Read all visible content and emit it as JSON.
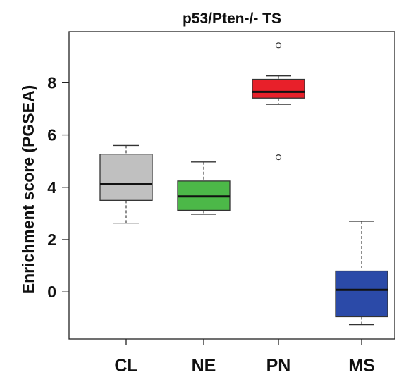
{
  "chart_data": {
    "type": "boxplot",
    "title": "p53/Pten-/- TS",
    "xlabel": "",
    "ylabel": "Enrichment score (PGSEA)",
    "ylim": [
      -1.8,
      9.95
    ],
    "yticks": [
      0,
      2,
      4,
      6,
      8
    ],
    "grid": false,
    "legend": "none",
    "categories": [
      "CL",
      "NE",
      "PN",
      "MS"
    ],
    "boxes": [
      {
        "category": "CL",
        "whisker_low": 2.63,
        "q1": 3.5,
        "median": 4.13,
        "q3": 5.27,
        "whisker_high": 5.6,
        "outliers": [],
        "color": "#c0c0c0"
      },
      {
        "category": "NE",
        "whisker_low": 2.97,
        "q1": 3.12,
        "median": 3.65,
        "q3": 4.24,
        "whisker_high": 4.97,
        "outliers": [],
        "color": "#4cb848"
      },
      {
        "category": "PN",
        "whisker_low": 7.17,
        "q1": 7.41,
        "median": 7.65,
        "q3": 8.13,
        "whisker_high": 8.26,
        "outliers": [
          9.43,
          5.15
        ],
        "color": "#e8202a"
      },
      {
        "category": "MS",
        "whisker_low": -1.25,
        "q1": -0.95,
        "median": 0.08,
        "q3": 0.8,
        "whisker_high": 2.7,
        "outliers": [],
        "color": "#2b4aa8"
      }
    ]
  }
}
